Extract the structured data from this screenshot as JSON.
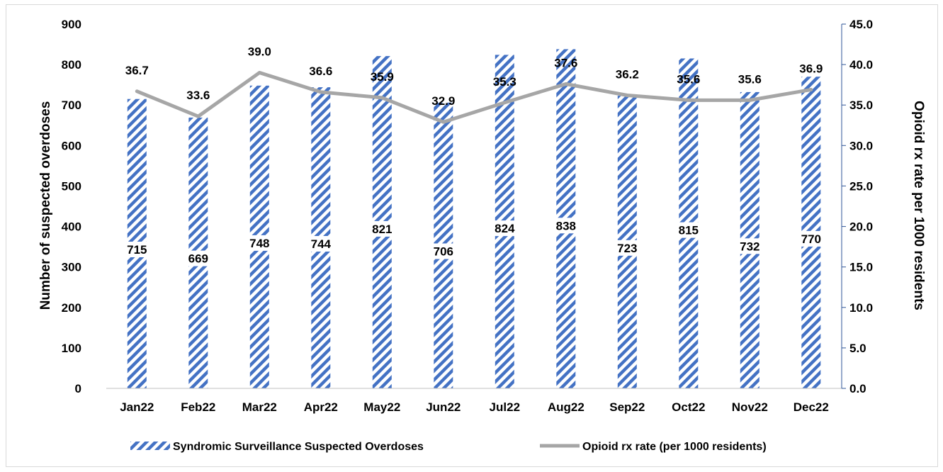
{
  "chart_data": {
    "type": "bar",
    "categories": [
      "Jan22",
      "Feb22",
      "Mar22",
      "Apr22",
      "May22",
      "Jun22",
      "Jul22",
      "Aug22",
      "Sep22",
      "Oct22",
      "Nov22",
      "Dec22"
    ],
    "series": [
      {
        "name": "Syndromic Surveillance Suspected Overdoses",
        "type": "bar",
        "axis": "left",
        "color": "#4472c4",
        "values": [
          715,
          669,
          748,
          744,
          821,
          706,
          824,
          838,
          723,
          815,
          732,
          770
        ],
        "labels": [
          "715",
          "669",
          "748",
          "744",
          "821",
          "706",
          "824",
          "838",
          "723",
          "815",
          "732",
          "770"
        ]
      },
      {
        "name": "Opioid rx rate (per 1000 residents)",
        "type": "line",
        "axis": "right",
        "color": "#a6a6a6",
        "values": [
          36.7,
          33.6,
          39.0,
          36.6,
          35.9,
          32.9,
          35.3,
          37.6,
          36.2,
          35.6,
          35.6,
          36.9
        ],
        "labels": [
          "36.7",
          "33.6",
          "39.0",
          "36.6",
          "35.9",
          "32.9",
          "35.3",
          "37.6",
          "36.2",
          "35.6",
          "35.6",
          "36.9"
        ]
      }
    ],
    "ylabel": "Number of suspected overdoses",
    "y2label": "Opioid rx rate per 1000 residents",
    "ylim": [
      0,
      900
    ],
    "y2lim": [
      0,
      45
    ],
    "yticks": [
      "0",
      "100",
      "200",
      "300",
      "400",
      "500",
      "600",
      "700",
      "800",
      "900"
    ],
    "y2ticks": [
      "0.0",
      "5.0",
      "10.0",
      "15.0",
      "20.0",
      "25.0",
      "30.0",
      "35.0",
      "40.0",
      "45.0"
    ],
    "grid": false,
    "legend_position": "bottom"
  }
}
